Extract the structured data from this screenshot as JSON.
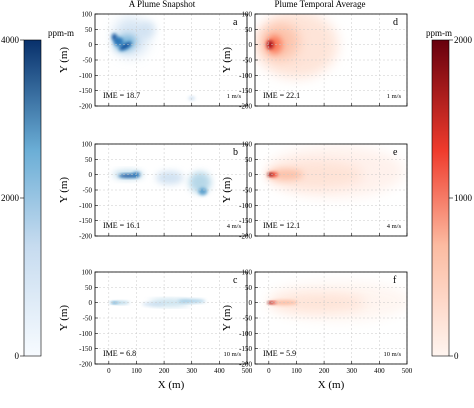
{
  "figure": {
    "column_titles": [
      "A Plume Snapshot",
      "Plume Temporal Average"
    ],
    "colorbar_left": {
      "label": "ppm-m",
      "ticks": [
        "4000",
        "2000",
        "0"
      ],
      "max": 4000,
      "colormap": "blues"
    },
    "colorbar_right": {
      "label": "ppm-m",
      "ticks": [
        "2000",
        "1000",
        "0"
      ],
      "max": 2000,
      "colormap": "reds"
    }
  },
  "chart_data": [
    {
      "type": "heatmap",
      "panel": "a",
      "column": "A Plume Snapshot",
      "ime_text": "IME = 18.7",
      "wind_text": "1 m/s",
      "ylabel": "Y (m)",
      "xlabel": "",
      "xlim": [
        -50,
        500
      ],
      "ylim": [
        -200,
        100
      ],
      "yticks": [
        "100",
        "50",
        "0",
        "-50",
        "-100",
        "-150",
        "-200"
      ],
      "xticks": []
    },
    {
      "type": "heatmap",
      "panel": "b",
      "column": "A Plume Snapshot",
      "ime_text": "IME = 16.1",
      "wind_text": "4 m/s",
      "ylabel": "Y (m)",
      "xlabel": "",
      "xlim": [
        -50,
        500
      ],
      "ylim": [
        -200,
        100
      ],
      "yticks": [
        "100",
        "50",
        "0",
        "-50",
        "-100",
        "-150",
        "-200"
      ],
      "xticks": []
    },
    {
      "type": "heatmap",
      "panel": "c",
      "column": "A Plume Snapshot",
      "ime_text": "IME = 6.8",
      "wind_text": "10 m/s",
      "ylabel": "Y (m)",
      "xlabel": "X (m)",
      "xlim": [
        -50,
        500
      ],
      "ylim": [
        -200,
        100
      ],
      "yticks": [
        "100",
        "50",
        "0",
        "-50",
        "-100",
        "-150",
        "-200"
      ],
      "xticks": [
        "0",
        "100",
        "200",
        "300",
        "400",
        "500"
      ]
    },
    {
      "type": "heatmap",
      "panel": "d",
      "column": "Plume Temporal Average",
      "ime_text": "IME = 22.1",
      "wind_text": "1 m/s",
      "ylabel": "Y (m)",
      "xlabel": "",
      "xlim": [
        -50,
        500
      ],
      "ylim": [
        -200,
        100
      ],
      "yticks": [
        "100",
        "50",
        "0",
        "-50",
        "-100",
        "-150",
        "-200"
      ],
      "xticks": []
    },
    {
      "type": "heatmap",
      "panel": "e",
      "column": "Plume Temporal Average",
      "ime_text": "IME = 12.1",
      "wind_text": "4 m/s",
      "ylabel": "Y (m)",
      "xlabel": "",
      "xlim": [
        -50,
        500
      ],
      "ylim": [
        -200,
        100
      ],
      "yticks": [
        "100",
        "50",
        "0",
        "-50",
        "-100",
        "-150",
        "-200"
      ],
      "xticks": []
    },
    {
      "type": "heatmap",
      "panel": "f",
      "column": "Plume Temporal Average",
      "ime_text": "IME = 5.9",
      "wind_text": "10 m/s",
      "ylabel": "Y (m)",
      "xlabel": "X (m)",
      "xlim": [
        -50,
        500
      ],
      "ylim": [
        -200,
        100
      ],
      "yticks": [
        "100",
        "50",
        "0",
        "-50",
        "-100",
        "-150",
        "-200"
      ],
      "xticks": [
        "0",
        "100",
        "200",
        "300",
        "400",
        "500"
      ]
    }
  ]
}
